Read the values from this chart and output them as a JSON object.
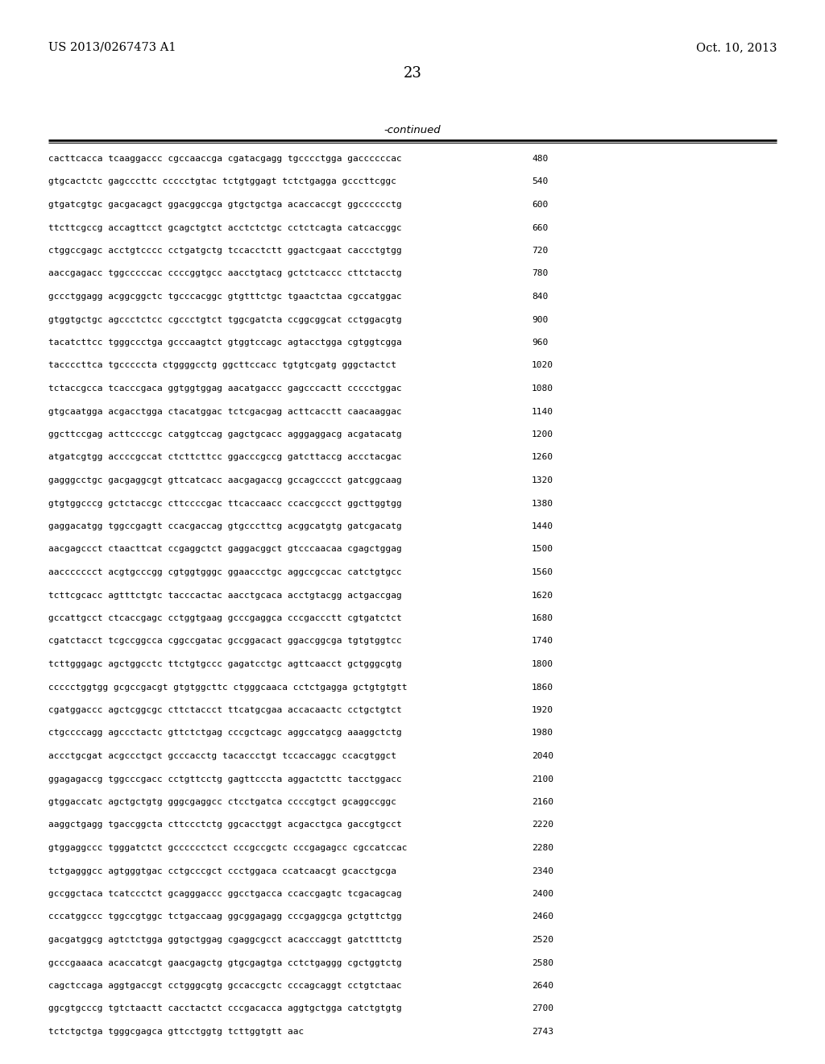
{
  "header_left": "US 2013/0267473 A1",
  "header_right": "Oct. 10, 2013",
  "page_number": "23",
  "continued_label": "-continued",
  "background_color": "#ffffff",
  "text_color": "#000000",
  "sequence_lines": [
    [
      "cacttcacca tcaaggaccc cgccaaccga cgatacgagg tgcccctgga gaccccccac",
      "480"
    ],
    [
      "gtgcactctc gagcccttc ccccctgtac tctgtggagt tctctgagga gcccttcggc",
      "540"
    ],
    [
      "gtgatcgtgc gacgacagct ggacggccga gtgctgctga acaccaccgt ggcccccctg",
      "600"
    ],
    [
      "ttcttcgccg accagttcct gcagctgtct acctctctgc cctctcagta catcaccggc",
      "660"
    ],
    [
      "ctggccgagc acctgtcccc cctgatgctg tccacctctt ggactcgaat caccctgtgg",
      "720"
    ],
    [
      "aaccgagacc tggcccccac ccccggtgcc aacctgtacg gctctcaccc cttctacctg",
      "780"
    ],
    [
      "gccctggagg acggcggctc tgcccacggc gtgtttctgc tgaactctaa cgccatggac",
      "840"
    ],
    [
      "gtggtgctgc agccctctcc cgccctgtct tggcgatcta ccggcggcat cctggacgtg",
      "900"
    ],
    [
      "tacatcttcc tgggccctga gcccaagtct gtggtccagc agtacctgga cgtggtcgga",
      "960"
    ],
    [
      "taccccttca tgcccccta ctggggcctg ggcttccacc tgtgtcgatg gggctactct",
      "1020"
    ],
    [
      "tctaccgcca tcacccgaca ggtggtggag aacatgaccc gagcccactt ccccctggac",
      "1080"
    ],
    [
      "gtgcaatgga acgacctgga ctacatggac tctcgacgag acttcacctt caacaaggac",
      "1140"
    ],
    [
      "ggcttccgag acttccccgc catggtccag gagctgcacc agggaggacg acgatacatg",
      "1200"
    ],
    [
      "atgatcgtgg accccgccat ctcttcttcc ggacccgccg gatcttaccg accctacgac",
      "1260"
    ],
    [
      "gagggcctgc gacgaggcgt gttcatcacc aacgagaccg gccagcccct gatcggcaag",
      "1320"
    ],
    [
      "gtgtggcccg gctctaccgc cttccccgac ttcaccaacc ccaccgccct ggcttggtgg",
      "1380"
    ],
    [
      "gaggacatgg tggccgagtt ccacgaccag gtgcccttcg acggcatgtg gatcgacatg",
      "1440"
    ],
    [
      "aacgagccct ctaacttcat ccgaggctct gaggacggct gtcccaacaa cgagctggag",
      "1500"
    ],
    [
      "aaccccccct acgtgcccgg cgtggtgggc ggaaccctgc aggccgccac catctgtgcc",
      "1560"
    ],
    [
      "tcttcgcacc agtttctgtc tacccactac aacctgcaca acctgtacgg actgaccgag",
      "1620"
    ],
    [
      "gccattgcct ctcaccgagc cctggtgaag gcccgaggca cccgaccctt cgtgatctct",
      "1680"
    ],
    [
      "cgatctacct tcgccggcca cggccgatac gccggacact ggaccggcga tgtgtggtcc",
      "1740"
    ],
    [
      "tcttgggagc agctggcctc ttctgtgccc gagatcctgc agttcaacct gctgggcgtg",
      "1800"
    ],
    [
      "ccccctggtgg gcgccgacgt gtgtggcttc ctgggcaaca cctctgagga gctgtgtgtt",
      "1860"
    ],
    [
      "cgatggaccc agctcggcgc cttctaccct ttcatgcgaa accacaactc cctgctgtct",
      "1920"
    ],
    [
      "ctgccccagg agccctactc gttctctgag cccgctcagc aggccatgcg aaaggctctg",
      "1980"
    ],
    [
      "accctgcgat acgccctgct gcccacctg tacaccctgt tccaccaggc ccacgtggct",
      "2040"
    ],
    [
      "ggagagaccg tggcccgacc cctgttcctg gagttcccta aggactcttc tacctggacc",
      "2100"
    ],
    [
      "gtggaccatc agctgctgtg gggcgaggcc ctcctgatca ccccgtgct gcaggccggc",
      "2160"
    ],
    [
      "aaggctgagg tgaccggcta cttccctctg ggcacctggt acgacctgca gaccgtgcct",
      "2220"
    ],
    [
      "gtggaggccc tgggatctct gcccccctcct cccgccgctc cccgagagcc cgccatccac",
      "2280"
    ],
    [
      "tctgagggcc agtgggtgac cctgcccgct ccctggaca ccatcaacgt gcacctgcga",
      "2340"
    ],
    [
      "gccggctaca tcatccctct gcagggaccc ggcctgacca ccaccgagtc tcgacagcag",
      "2400"
    ],
    [
      "cccatggccc tggccgtggc tctgaccaag ggcggagagg cccgaggcga gctgttctgg",
      "2460"
    ],
    [
      "gacgatggcg agtctctgga ggtgctggag cgaggcgcct acacccaggt gatctttctg",
      "2520"
    ],
    [
      "gcccgaaaca acaccatcgt gaacgagctg gtgcgagtga cctctgaggg cgctggtctg",
      "2580"
    ],
    [
      "cagctccaga aggtgaccgt cctgggcgtg gccaccgctc cccagcaggt cctgtctaac",
      "2640"
    ],
    [
      "ggcgtgcccg tgtctaactt cacctactct cccgacacca aggtgctgga catctgtgtg",
      "2700"
    ],
    [
      "tctctgctga tgggcgagca gttcctggtg tcttggtgtt aac",
      "2743"
    ]
  ]
}
